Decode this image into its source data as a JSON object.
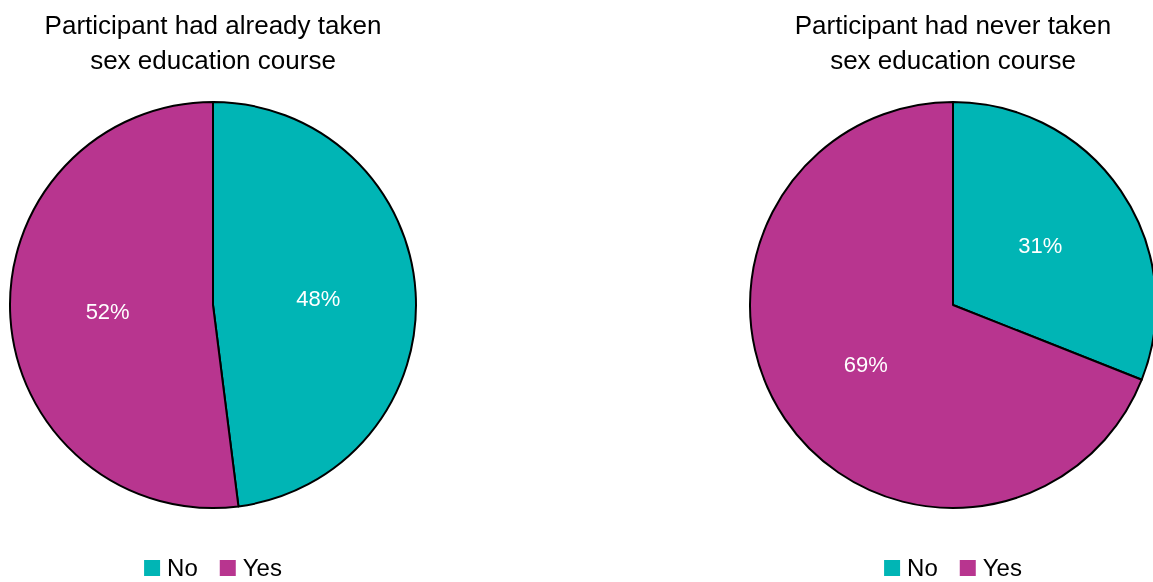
{
  "chart_data": [
    {
      "type": "pie",
      "title": "Participant had already taken sex education course",
      "categories": [
        "No",
        "Yes"
      ],
      "values": [
        48,
        52
      ],
      "value_labels": [
        "48%",
        "52%"
      ],
      "colors": [
        "#00b5b5",
        "#b8358f"
      ],
      "legend": "bottom"
    },
    {
      "type": "pie",
      "title": "Participant had never taken sex education course",
      "categories": [
        "No",
        "Yes"
      ],
      "values": [
        31,
        69
      ],
      "value_labels": [
        "31%",
        "69%"
      ],
      "colors": [
        "#00b5b5",
        "#b8358f"
      ],
      "legend": "bottom"
    }
  ]
}
